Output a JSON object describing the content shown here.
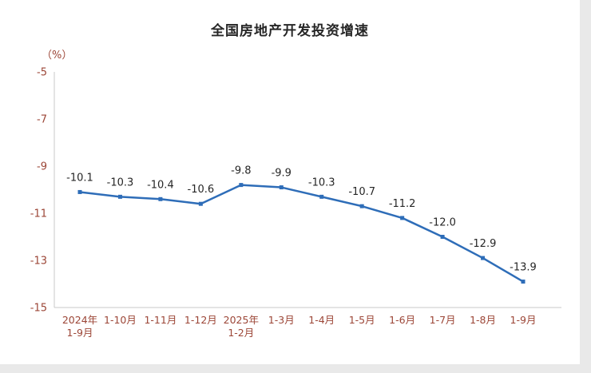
{
  "chart_data": {
    "type": "line",
    "title": "全国房地产开发投资增速",
    "ylabel": "（%）",
    "categories": [
      "2024年\n1-9月",
      "1-10月",
      "1-11月",
      "1-12月",
      "2025年\n1-2月",
      "1-3月",
      "1-4月",
      "1-5月",
      "1-6月",
      "1-7月",
      "1-8月",
      "1-9月"
    ],
    "values": [
      -10.1,
      -10.3,
      -10.4,
      -10.6,
      -9.8,
      -9.9,
      -10.3,
      -10.7,
      -11.2,
      -12.0,
      -12.9,
      -13.9
    ],
    "ylim": [
      -15,
      -5
    ],
    "yticks": [
      -5,
      -7,
      -9,
      -11,
      -13,
      -15
    ],
    "grid": false,
    "legend": "none",
    "colors": {
      "line": "#2e6db8",
      "axis": "#c9c9c9",
      "tick_text": "#9c4637",
      "data_label": "#262626",
      "title": "#262626",
      "background": "#ffffff",
      "page_background": "#e9e9e9"
    }
  }
}
